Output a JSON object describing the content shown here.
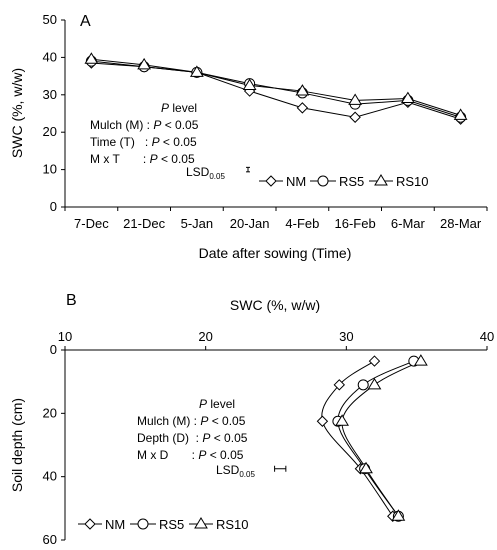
{
  "chart_data": [
    {
      "type": "line",
      "panel_label": "A",
      "ylabel": "SWC (%, w/w)",
      "xlabel": "Date after sowing (Time)",
      "categories": [
        "7-Dec",
        "21-Dec",
        "5-Jan",
        "20-Jan",
        "4-Feb",
        "16-Feb",
        "6-Mar",
        "28-Mar"
      ],
      "ylim": [
        0,
        50
      ],
      "yticks": [
        "0",
        "10",
        "20",
        "30",
        "40",
        "50"
      ],
      "series": [
        {
          "name": "NM",
          "marker": "diamond",
          "values": [
            38.5,
            37.5,
            36.0,
            31.0,
            26.5,
            24.0,
            28.0,
            23.5
          ]
        },
        {
          "name": "RS5",
          "marker": "circle",
          "values": [
            39.0,
            37.5,
            36.0,
            33.0,
            30.5,
            27.5,
            28.5,
            24.0
          ]
        },
        {
          "name": "RS10",
          "marker": "triangle",
          "values": [
            39.5,
            38.0,
            36.0,
            32.5,
            31.0,
            28.5,
            29.0,
            24.5
          ]
        }
      ],
      "annotation": {
        "title": "level",
        "title_italic": "P",
        "rows": [
          {
            "label": "Mulch (M) :",
            "p": "P",
            "value": "< 0.05"
          },
          {
            "label": "Time (T)   :",
            "p": "P",
            "value": "< 0.05"
          },
          {
            "label": "M x T       :",
            "p": "P",
            "value": "< 0.05"
          }
        ],
        "lsd_label": "LSD",
        "lsd_sub": "0.05",
        "lsd_value": 10,
        "lsd_half_width": 0.6
      },
      "legend_position": "lower-right"
    },
    {
      "type": "line",
      "panel_label": "B",
      "xlabel": "SWC (%, w/w)",
      "ylabel": "Soil depth (cm)",
      "xlim": [
        10,
        40
      ],
      "xticks": [
        "10",
        "20",
        "30",
        "40"
      ],
      "ylim": [
        0,
        60
      ],
      "yticks": [
        "0",
        "20",
        "40",
        "60"
      ],
      "y_inverted": true,
      "depths": [
        3.5,
        11,
        22.5,
        37.5,
        52.5
      ],
      "series": [
        {
          "name": "NM",
          "marker": "diamond",
          "x": [
            32.0,
            29.5,
            28.3,
            31.0,
            33.3
          ]
        },
        {
          "name": "RS5",
          "marker": "circle",
          "x": [
            34.8,
            31.2,
            29.4,
            31.3,
            33.7
          ]
        },
        {
          "name": "RS10",
          "marker": "triangle",
          "x": [
            35.3,
            32.0,
            29.7,
            31.4,
            33.7
          ]
        }
      ],
      "annotation": {
        "title": "level",
        "title_italic": "P",
        "rows": [
          {
            "label": "Mulch (M) :",
            "p": "P",
            "value": "< 0.05"
          },
          {
            "label": "Depth (D)  :",
            "p": "P",
            "value": "< 0.05"
          },
          {
            "label": "M x D       :",
            "p": "P",
            "value": "< 0.05"
          }
        ],
        "lsd_label": "LSD",
        "lsd_sub": "0.05",
        "lsd_x": 25.3,
        "lsd_depth": 37.5,
        "lsd_half_width": 0.4
      },
      "legend_position": "lower-left"
    }
  ]
}
